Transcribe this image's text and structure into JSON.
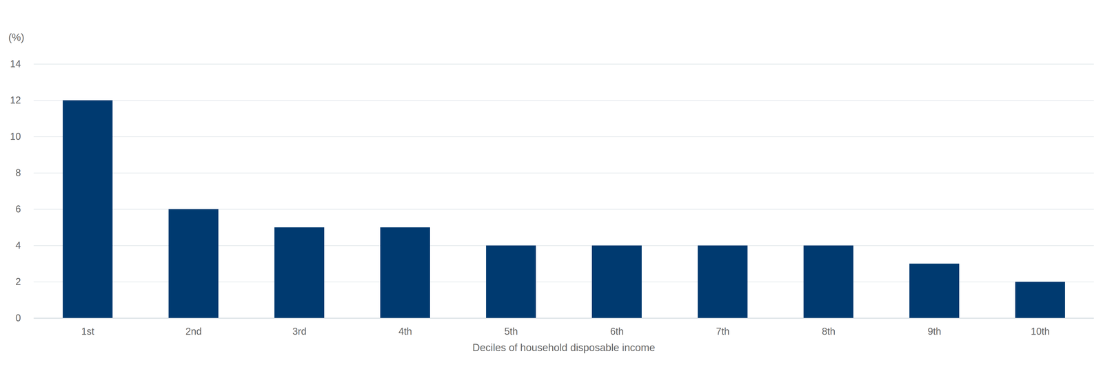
{
  "chart_data": {
    "type": "bar",
    "x_label": "Deciles of household disposable income",
    "y_label": "(%)",
    "categories": [
      "1st",
      "2nd",
      "3rd",
      "4th",
      "5th",
      "6th",
      "7th",
      "8th",
      "9th",
      "10th"
    ],
    "values": [
      12,
      6,
      5,
      5,
      4,
      4,
      4,
      4,
      3,
      2
    ],
    "color": "#003a70",
    "ylim": [
      0,
      14
    ],
    "yticks": [
      0,
      2,
      4,
      6,
      8,
      10,
      12,
      14
    ],
    "grid": true
  }
}
